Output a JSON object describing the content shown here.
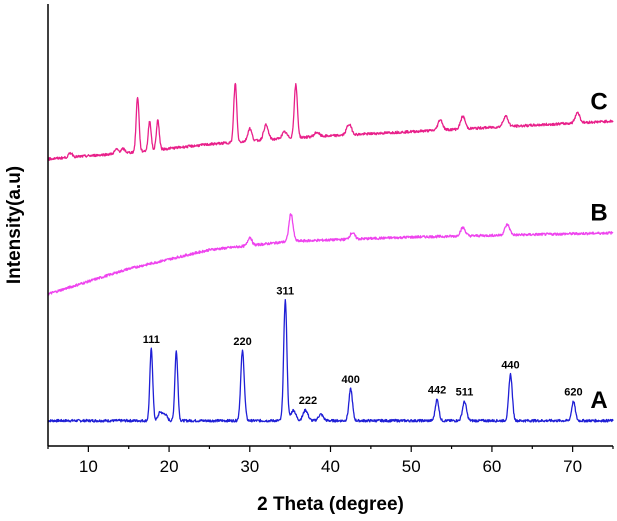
{
  "chart_data": {
    "type": "line",
    "xlabel": "2 Theta (degree)",
    "ylabel": "Intensity(a.u)",
    "xlim": [
      5,
      75
    ],
    "xticks": [
      10,
      20,
      30,
      40,
      50,
      60,
      70
    ],
    "ylim": [
      0,
      1
    ],
    "y_tick_labels": false,
    "grid": false,
    "legend": "none",
    "series": [
      {
        "name": "A",
        "color": "#1f1fd6",
        "offset": 0.06,
        "baseline": [
          [
            5,
            0.0
          ],
          [
            75,
            0.0
          ]
        ],
        "peaks": [
          {
            "x": 17.8,
            "h": 0.17,
            "w": 0.18
          },
          {
            "x": 18.9,
            "h": 0.02,
            "w": 0.25
          },
          {
            "x": 19.5,
            "h": 0.015,
            "w": 0.25
          },
          {
            "x": 20.9,
            "h": 0.165,
            "w": 0.18
          },
          {
            "x": 29.1,
            "h": 0.165,
            "w": 0.22
          },
          {
            "x": 34.4,
            "h": 0.285,
            "w": 0.2
          },
          {
            "x": 35.4,
            "h": 0.025,
            "w": 0.3
          },
          {
            "x": 36.9,
            "h": 0.025,
            "w": 0.3
          },
          {
            "x": 38.8,
            "h": 0.015,
            "w": 0.3
          },
          {
            "x": 42.5,
            "h": 0.075,
            "w": 0.22
          },
          {
            "x": 53.2,
            "h": 0.05,
            "w": 0.22
          },
          {
            "x": 56.6,
            "h": 0.045,
            "w": 0.25
          },
          {
            "x": 62.3,
            "h": 0.11,
            "w": 0.22
          },
          {
            "x": 70.1,
            "h": 0.045,
            "w": 0.22
          }
        ],
        "peak_labels": [
          {
            "x": 17.8,
            "text": "111"
          },
          {
            "x": 29.1,
            "text": "220"
          },
          {
            "x": 34.4,
            "text": "311"
          },
          {
            "x": 37.2,
            "text": "222"
          },
          {
            "x": 42.5,
            "text": "400"
          },
          {
            "x": 53.2,
            "text": "442"
          },
          {
            "x": 56.6,
            "text": "511"
          },
          {
            "x": 62.3,
            "text": "440"
          },
          {
            "x": 70.1,
            "text": "620"
          }
        ]
      },
      {
        "name": "B",
        "color": "#ee44ee",
        "offset": 0.36,
        "baseline": [
          [
            5,
            0.0
          ],
          [
            15,
            0.06
          ],
          [
            25,
            0.105
          ],
          [
            35,
            0.125
          ],
          [
            50,
            0.135
          ],
          [
            75,
            0.145
          ]
        ],
        "peaks": [
          {
            "x": 30.0,
            "h": 0.02,
            "w": 0.25
          },
          {
            "x": 35.1,
            "h": 0.065,
            "w": 0.25
          },
          {
            "x": 42.7,
            "h": 0.015,
            "w": 0.3
          },
          {
            "x": 56.4,
            "h": 0.02,
            "w": 0.3
          },
          {
            "x": 61.9,
            "h": 0.025,
            "w": 0.3
          }
        ],
        "peak_labels": []
      },
      {
        "name": "C",
        "color": "#e8208a",
        "offset": 0.68,
        "baseline": [
          [
            5,
            0.0
          ],
          [
            15,
            0.015
          ],
          [
            25,
            0.035
          ],
          [
            35,
            0.05
          ],
          [
            50,
            0.065
          ],
          [
            75,
            0.09
          ]
        ],
        "peaks": [
          {
            "x": 7.8,
            "h": 0.01,
            "w": 0.25
          },
          {
            "x": 13.5,
            "h": 0.01,
            "w": 0.25
          },
          {
            "x": 14.3,
            "h": 0.01,
            "w": 0.25
          },
          {
            "x": 16.1,
            "h": 0.13,
            "w": 0.18
          },
          {
            "x": 17.6,
            "h": 0.07,
            "w": 0.18
          },
          {
            "x": 18.6,
            "h": 0.07,
            "w": 0.18
          },
          {
            "x": 28.2,
            "h": 0.14,
            "w": 0.18
          },
          {
            "x": 30.0,
            "h": 0.03,
            "w": 0.25
          },
          {
            "x": 32.0,
            "h": 0.035,
            "w": 0.28
          },
          {
            "x": 34.3,
            "h": 0.015,
            "w": 0.3
          },
          {
            "x": 35.7,
            "h": 0.125,
            "w": 0.2
          },
          {
            "x": 38.3,
            "h": 0.01,
            "w": 0.3
          },
          {
            "x": 42.3,
            "h": 0.025,
            "w": 0.3
          },
          {
            "x": 53.6,
            "h": 0.025,
            "w": 0.28
          },
          {
            "x": 56.4,
            "h": 0.03,
            "w": 0.28
          },
          {
            "x": 61.7,
            "h": 0.025,
            "w": 0.3
          },
          {
            "x": 70.6,
            "h": 0.025,
            "w": 0.28
          }
        ],
        "peak_labels": []
      }
    ]
  }
}
